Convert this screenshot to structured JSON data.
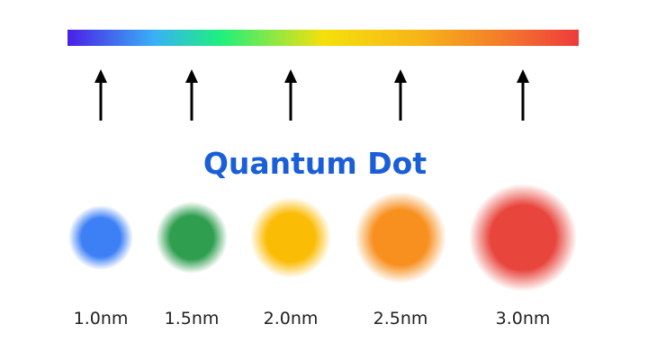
{
  "title": "Quantum Dot",
  "dots": [
    {
      "label": "1.0nm"
    },
    {
      "label": "1.5nm"
    },
    {
      "label": "2.0nm"
    },
    {
      "label": "2.5nm"
    },
    {
      "label": "3.0nm"
    }
  ]
}
